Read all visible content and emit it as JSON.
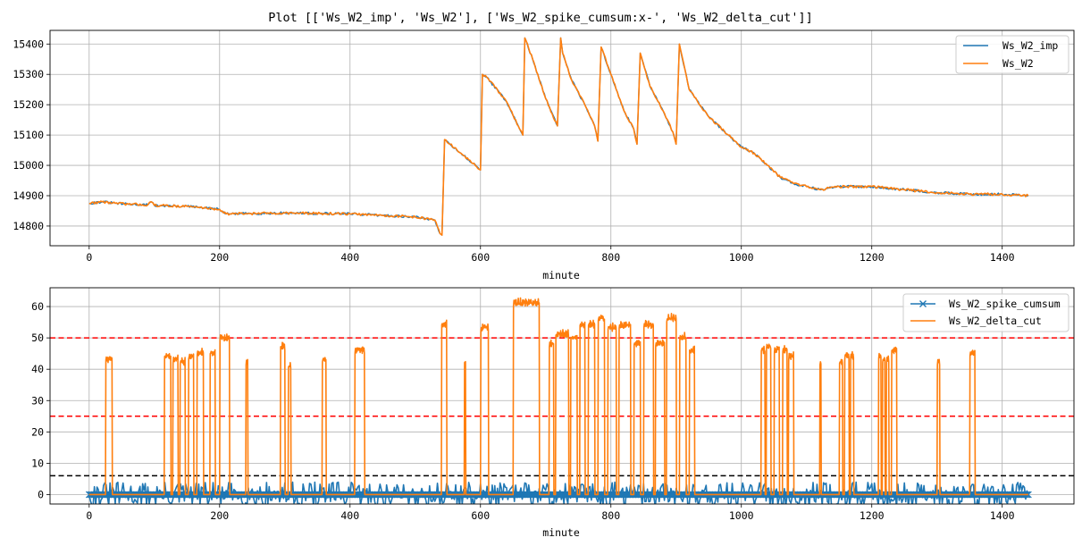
{
  "figure": {
    "title": "Plot [['Ws_W2_imp', 'Ws_W2'], ['Ws_W2_spike_cumsum:x-', 'Ws_W2_delta_cut']]"
  },
  "colors": {
    "blue": "#1f77b4",
    "orange": "#ff7f0e",
    "red": "#ff0000",
    "black": "#000000",
    "grid": "#b0b0b0"
  },
  "chart_data": [
    {
      "type": "line",
      "xlabel": "minute",
      "ylabel": "",
      "xlim": [
        -60,
        1510
      ],
      "ylim": [
        14735,
        15445
      ],
      "x_ticks": [
        0,
        200,
        400,
        600,
        800,
        1000,
        1200,
        1400
      ],
      "y_ticks": [
        14800,
        14900,
        15000,
        15100,
        15200,
        15300,
        15400
      ],
      "grid": true,
      "legend_position": "top-right",
      "series": [
        {
          "name": "Ws_W2_imp",
          "color": "blue",
          "same_as_previous": true,
          "x": [
            0,
            20,
            40,
            60,
            90,
            95,
            100,
            150,
            190,
            200,
            210,
            300,
            400,
            450,
            500,
            530,
            538,
            541,
            545,
            570,
            600,
            603,
            610,
            640,
            660,
            665,
            668,
            680,
            700,
            718,
            723,
            726,
            740,
            760,
            775,
            780,
            785,
            800,
            820,
            835,
            840,
            845,
            860,
            880,
            895,
            900,
            905,
            920,
            950,
            980,
            1000,
            1020,
            1040,
            1060,
            1080,
            1100,
            1120,
            1150,
            1200,
            1250,
            1300,
            1350,
            1400,
            1440
          ],
          "y": [
            14875,
            14880,
            14875,
            14872,
            14870,
            14880,
            14868,
            14865,
            14857,
            14855,
            14840,
            14843,
            14840,
            14835,
            14830,
            14820,
            14775,
            14770,
            15085,
            15040,
            14985,
            15300,
            15290,
            15210,
            15120,
            15100,
            15420,
            15350,
            15220,
            15130,
            15420,
            15370,
            15280,
            15200,
            15130,
            15080,
            15390,
            15300,
            15180,
            15120,
            15070,
            15370,
            15260,
            15180,
            15110,
            15070,
            15400,
            15250,
            15160,
            15100,
            15060,
            15040,
            15000,
            14960,
            14940,
            14930,
            14920,
            14930,
            14930,
            14920,
            14910,
            14905,
            14905,
            14900
          ]
        },
        {
          "name": "Ws_W2",
          "color": "orange",
          "x": [
            0,
            20,
            40,
            60,
            90,
            95,
            100,
            150,
            190,
            200,
            210,
            300,
            400,
            450,
            500,
            530,
            538,
            541,
            545,
            570,
            600,
            603,
            610,
            640,
            660,
            665,
            668,
            680,
            700,
            718,
            723,
            726,
            740,
            760,
            775,
            780,
            785,
            800,
            820,
            835,
            840,
            845,
            860,
            880,
            895,
            900,
            905,
            920,
            950,
            980,
            1000,
            1020,
            1040,
            1060,
            1080,
            1100,
            1120,
            1150,
            1200,
            1250,
            1300,
            1350,
            1400,
            1440
          ],
          "y": [
            14875,
            14880,
            14875,
            14872,
            14870,
            14880,
            14868,
            14865,
            14857,
            14855,
            14840,
            14843,
            14840,
            14835,
            14830,
            14820,
            14775,
            14770,
            15085,
            15040,
            14985,
            15300,
            15290,
            15210,
            15120,
            15100,
            15420,
            15350,
            15220,
            15130,
            15420,
            15370,
            15280,
            15200,
            15130,
            15080,
            15390,
            15300,
            15180,
            15120,
            15070,
            15370,
            15260,
            15180,
            15110,
            15070,
            15400,
            15250,
            15160,
            15100,
            15060,
            15040,
            15000,
            14960,
            14940,
            14930,
            14920,
            14930,
            14930,
            14920,
            14910,
            14905,
            14905,
            14900
          ]
        }
      ]
    },
    {
      "type": "line",
      "xlabel": "minute",
      "ylabel": "",
      "xlim": [
        -60,
        1510
      ],
      "ylim": [
        -3,
        66
      ],
      "x_ticks": [
        0,
        200,
        400,
        600,
        800,
        1000,
        1200,
        1400
      ],
      "y_ticks": [
        0,
        10,
        20,
        30,
        40,
        50,
        60
      ],
      "grid": true,
      "legend_position": "top-right",
      "reference_lines": [
        {
          "y": 50,
          "color": "red",
          "style": "dashed"
        },
        {
          "y": 25,
          "color": "red",
          "style": "dashed"
        },
        {
          "y": 6,
          "color": "black",
          "style": "dashed"
        }
      ],
      "series": [
        {
          "name": "Ws_W2_spike_cumsum",
          "color": "blue",
          "marker": "x",
          "x": [
            0,
            1440
          ],
          "y": [
            0,
            0
          ]
        },
        {
          "name": "Ws_W2_delta_cut",
          "color": "orange",
          "pulses": [
            [
              25,
              35,
              45
            ],
            [
              115,
              125,
              46
            ],
            [
              128,
              136,
              45
            ],
            [
              139,
              147,
              44
            ],
            [
              152,
              160,
              46
            ],
            [
              165,
              175,
              47
            ],
            [
              185,
              193,
              47
            ],
            [
              200,
              215,
              52
            ],
            [
              240,
              243,
              44
            ],
            [
              293,
              300,
              49
            ],
            [
              305,
              309,
              43
            ],
            [
              357,
              363,
              45
            ],
            [
              407,
              422,
              48
            ],
            [
              540,
              548,
              56
            ],
            [
              575,
              577,
              44
            ],
            [
              600,
              612,
              55
            ],
            [
              650,
              690,
              63
            ],
            [
              705,
              712,
              50
            ],
            [
              715,
              735,
              53
            ],
            [
              738,
              748,
              52
            ],
            [
              752,
              760,
              56
            ],
            [
              765,
              775,
              56
            ],
            [
              780,
              790,
              58
            ],
            [
              795,
              808,
              55
            ],
            [
              812,
              830,
              56
            ],
            [
              835,
              845,
              50
            ],
            [
              850,
              865,
              56
            ],
            [
              868,
              882,
              50
            ],
            [
              885,
              900,
              58
            ],
            [
              905,
              915,
              52
            ],
            [
              920,
              928,
              48
            ],
            [
              1030,
              1036,
              48
            ],
            [
              1038,
              1045,
              49
            ],
            [
              1050,
              1058,
              48
            ],
            [
              1063,
              1070,
              48
            ],
            [
              1072,
              1080,
              46
            ],
            [
              1120,
              1122,
              44
            ],
            [
              1150,
              1155,
              44
            ],
            [
              1158,
              1165,
              46
            ],
            [
              1167,
              1172,
              46
            ],
            [
              1210,
              1214,
              46
            ],
            [
              1216,
              1220,
              45
            ],
            [
              1222,
              1226,
              45
            ],
            [
              1230,
              1238,
              48
            ],
            [
              1300,
              1304,
              44
            ],
            [
              1350,
              1358,
              47
            ]
          ]
        }
      ]
    }
  ]
}
